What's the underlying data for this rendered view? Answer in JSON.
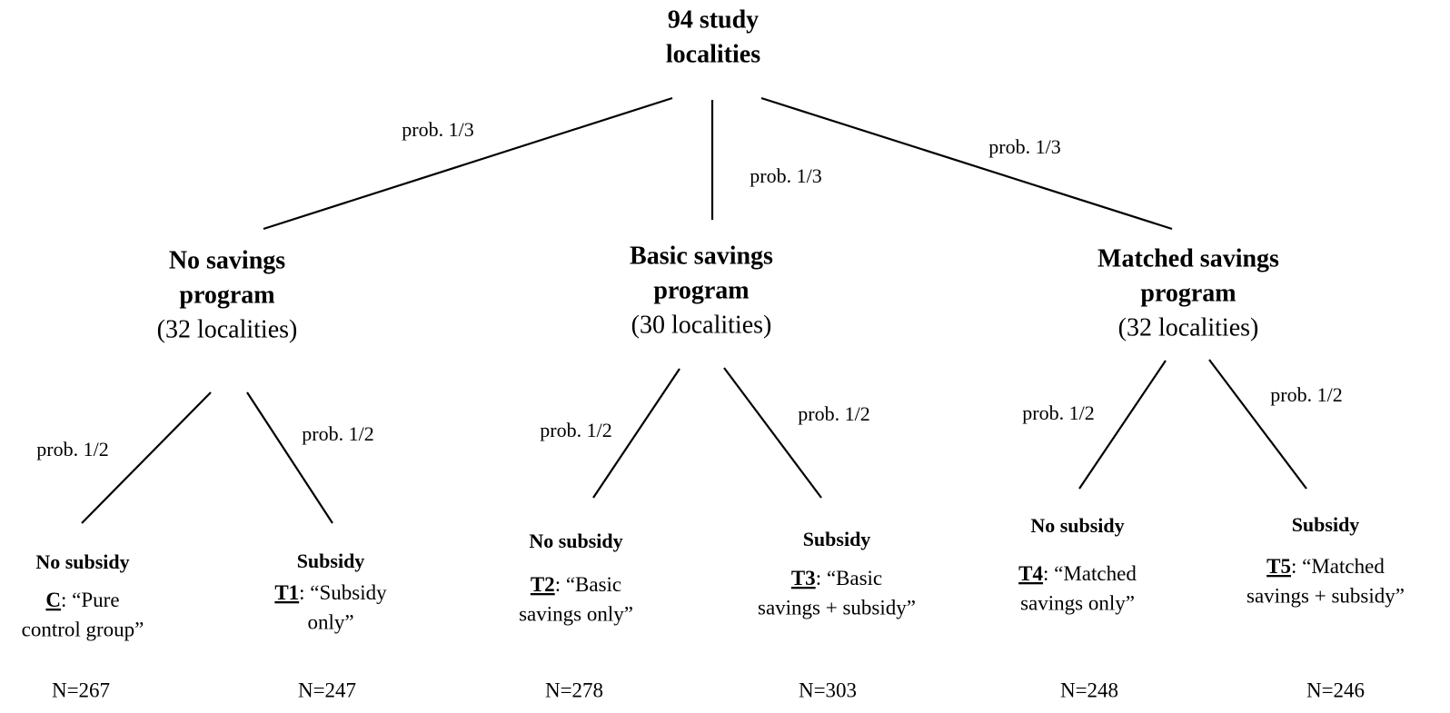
{
  "root": {
    "lines": [
      "94 study",
      "localities"
    ]
  },
  "branches": [
    {
      "prob": "prob. 1/3",
      "node": {
        "lines": [
          "No savings",
          "program"
        ],
        "count": "(32 localities)",
        "branches": [
          {
            "prob": "prob. 1/2",
            "leaf": {
              "title": "No subsidy",
              "code": "C",
              "lines": [
                ": “Pure",
                "control group”"
              ],
              "n": "N=267"
            }
          },
          {
            "prob": "prob. 1/2",
            "leaf": {
              "title": "Subsidy",
              "code": "T1",
              "lines": [
                ": “Subsidy",
                "only”"
              ],
              "n": "N=247"
            }
          }
        ]
      }
    },
    {
      "prob": "prob. 1/3",
      "node": {
        "lines": [
          "Basic savings",
          "program"
        ],
        "count": "(30 localities)",
        "branches": [
          {
            "prob": "prob. 1/2",
            "leaf": {
              "title": "No subsidy",
              "code": "T2",
              "lines": [
                ": “Basic",
                "savings only”"
              ],
              "n": "N=278"
            }
          },
          {
            "prob": "prob. 1/2",
            "leaf": {
              "title": "Subsidy",
              "code": "T3",
              "lines": [
                ": “Basic",
                "savings + subsidy”"
              ],
              "n": "N=303"
            }
          }
        ]
      }
    },
    {
      "prob": "prob. 1/3",
      "node": {
        "lines": [
          "Matched savings",
          "program"
        ],
        "count": "(32 localities)",
        "branches": [
          {
            "prob": "prob. 1/2",
            "leaf": {
              "title": "No subsidy",
              "code": "T4",
              "lines": [
                ": “Matched",
                "savings only”"
              ],
              "n": "N=248"
            }
          },
          {
            "prob": "prob. 1/2",
            "leaf": {
              "title": "Subsidy",
              "code": "T5",
              "lines": [
                ": “Matched",
                "savings + subsidy”"
              ],
              "n": "N=246"
            }
          }
        ]
      }
    }
  ]
}
